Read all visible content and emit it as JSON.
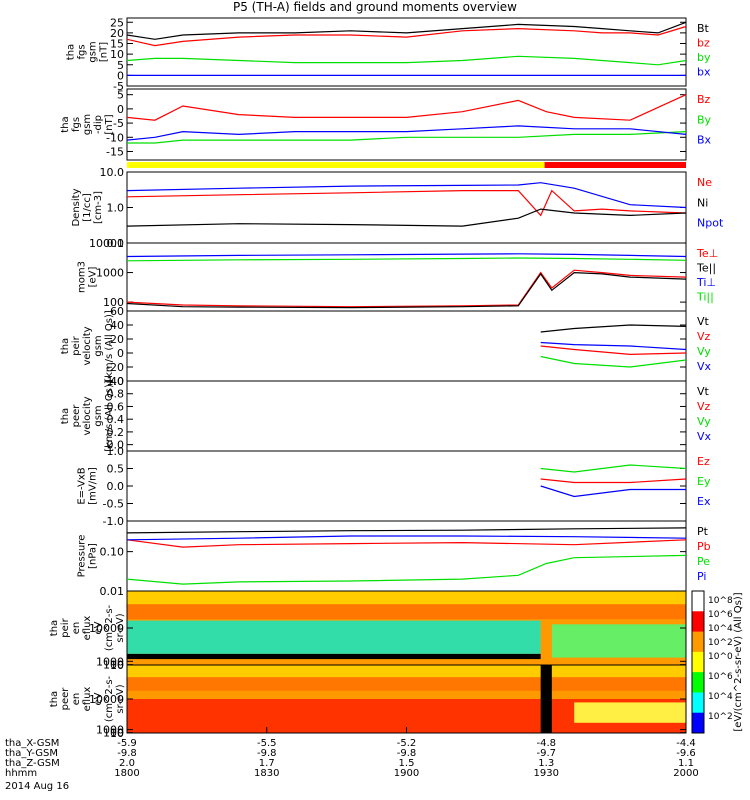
{
  "title": "P5 (TH-A) fields and ground moments overview",
  "colors": {
    "black": "#000000",
    "red": "#ff0000",
    "green": "#00e000",
    "blue": "#0000ff",
    "yellow": "#ffff00"
  },
  "x_axis": {
    "rows": [
      {
        "label": "tha_X-GSM",
        "values": [
          "-5.9",
          "-5.5",
          "-5.2",
          "-4.8",
          "-4.4"
        ]
      },
      {
        "label": "tha_Y-GSM",
        "values": [
          "-9.8",
          "-9.8",
          "-9.8",
          "-9.7",
          "-9.6"
        ]
      },
      {
        "label": "tha_Z-GSM",
        "values": [
          "2.0",
          "1.7",
          "1.5",
          "1.3",
          "1.1"
        ]
      },
      {
        "label": "hhmm",
        "values": [
          "1800",
          "1830",
          "1900",
          "1930",
          "2000"
        ]
      }
    ],
    "date": "2014 Aug 16"
  },
  "chart_data": [
    {
      "type": "line",
      "ylabel": [
        "tha",
        "fgs",
        "gsm",
        "[nT]"
      ],
      "ylim": [
        -5,
        27
      ],
      "yticks": [
        "25",
        "20",
        "15",
        "10",
        "5",
        "0",
        "-5"
      ],
      "ytick_values": [
        25,
        20,
        15,
        10,
        5,
        0,
        -5
      ],
      "series": [
        {
          "name": "Bt",
          "color": "#000000",
          "x": [
            0,
            0.05,
            0.1,
            0.2,
            0.3,
            0.4,
            0.5,
            0.6,
            0.7,
            0.8,
            0.85,
            0.9,
            0.95,
            1
          ],
          "values": [
            19,
            17,
            19,
            20,
            20,
            21,
            20,
            22,
            24,
            23,
            22,
            21,
            20,
            25
          ]
        },
        {
          "name": "bz",
          "color": "#ff0000",
          "x": [
            0,
            0.05,
            0.1,
            0.2,
            0.3,
            0.4,
            0.5,
            0.6,
            0.7,
            0.8,
            0.85,
            0.9,
            0.95,
            1
          ],
          "values": [
            17,
            14,
            16,
            18,
            19,
            19,
            18,
            21,
            22,
            21,
            20,
            20,
            19,
            23
          ]
        },
        {
          "name": "by",
          "color": "#00e000",
          "x": [
            0,
            0.05,
            0.1,
            0.2,
            0.3,
            0.4,
            0.5,
            0.6,
            0.7,
            0.8,
            0.85,
            0.9,
            0.95,
            1
          ],
          "values": [
            7,
            8,
            8,
            7,
            6,
            6,
            6,
            7,
            9,
            8,
            7,
            6,
            5,
            7
          ]
        },
        {
          "name": "bx",
          "color": "#0000ff",
          "x": [
            0,
            0.05,
            0.1,
            0.2,
            0.3,
            0.4,
            0.5,
            0.6,
            0.7,
            0.8,
            0.85,
            0.9,
            0.95,
            1
          ],
          "values": [
            0,
            0,
            0,
            0,
            0,
            0,
            0,
            0,
            0,
            0,
            0,
            0,
            0,
            0
          ]
        }
      ]
    },
    {
      "type": "line",
      "ylabel": [
        "tha",
        "fgs",
        "gsm",
        "-dip",
        "[nT]"
      ],
      "ylim": [
        -18,
        7
      ],
      "yticks": [
        "5",
        "0",
        "-5",
        "-10",
        "-15"
      ],
      "ytick_values": [
        5,
        0,
        -5,
        -10,
        -15
      ],
      "series": [
        {
          "name": "Bz",
          "color": "#ff0000",
          "x": [
            0,
            0.05,
            0.1,
            0.2,
            0.3,
            0.4,
            0.5,
            0.6,
            0.7,
            0.75,
            0.8,
            0.9,
            1
          ],
          "values": [
            -3,
            -4,
            1,
            -2,
            -3,
            -3,
            -3,
            -1,
            3,
            -1,
            -3,
            -4,
            5
          ]
        },
        {
          "name": "By",
          "color": "#00e000",
          "x": [
            0,
            0.05,
            0.1,
            0.2,
            0.3,
            0.4,
            0.5,
            0.6,
            0.7,
            0.8,
            0.9,
            1
          ],
          "values": [
            -12,
            -12,
            -11,
            -11,
            -11,
            -11,
            -10,
            -10,
            -10,
            -9,
            -9,
            -8
          ]
        },
        {
          "name": "Bx",
          "color": "#0000ff",
          "x": [
            0,
            0.05,
            0.1,
            0.2,
            0.3,
            0.4,
            0.5,
            0.6,
            0.7,
            0.8,
            0.9,
            1
          ],
          "values": [
            -11,
            -10,
            -8,
            -9,
            -8,
            -8,
            -8,
            -7,
            -6,
            -7,
            -7,
            -9
          ]
        }
      ]
    },
    {
      "type": "line",
      "log": true,
      "ylabel": [
        "Density",
        "[1/cc]",
        "[cm-3]"
      ],
      "ylim": [
        0.1,
        10
      ],
      "yticks": [
        "10.0",
        "1.0",
        "0.1"
      ],
      "ytick_values": [
        10,
        1,
        0.1
      ],
      "series": [
        {
          "name": "Ne",
          "color": "#ff0000",
          "x": [
            0,
            0.2,
            0.4,
            0.6,
            0.7,
            0.74,
            0.76,
            0.8,
            0.85,
            0.9,
            1
          ],
          "values": [
            2,
            2.3,
            2.6,
            3,
            3,
            0.6,
            3,
            0.8,
            0.9,
            0.8,
            0.7
          ]
        },
        {
          "name": "Ni",
          "color": "#000000",
          "x": [
            0,
            0.2,
            0.4,
            0.6,
            0.7,
            0.74,
            0.8,
            0.9,
            1
          ],
          "values": [
            0.3,
            0.35,
            0.33,
            0.3,
            0.5,
            0.9,
            0.7,
            0.6,
            0.7
          ]
        },
        {
          "name": "Npot",
          "color": "#0000ff",
          "x": [
            0,
            0.2,
            0.4,
            0.6,
            0.7,
            0.74,
            0.8,
            0.9,
            1
          ],
          "values": [
            3,
            3.5,
            4,
            4.2,
            4.3,
            5,
            3.5,
            1.2,
            1
          ]
        }
      ]
    },
    {
      "type": "line",
      "log": true,
      "ylabel": [
        "mom3",
        "[eV]"
      ],
      "ylim": [
        50,
        10000
      ],
      "yticks": [
        "10000",
        "1000",
        "100"
      ],
      "ytick_values": [
        10000,
        1000,
        100
      ],
      "series": [
        {
          "name": "Te⊥",
          "color": "#ff0000",
          "x": [
            0,
            0.1,
            0.2,
            0.4,
            0.6,
            0.7,
            0.74,
            0.76,
            0.8,
            0.85,
            0.9,
            1
          ],
          "values": [
            100,
            80,
            75,
            70,
            75,
            80,
            1000,
            300,
            1200,
            1000,
            800,
            700
          ]
        },
        {
          "name": "Te||",
          "color": "#000000",
          "x": [
            0,
            0.1,
            0.2,
            0.4,
            0.6,
            0.7,
            0.74,
            0.76,
            0.8,
            0.85,
            0.9,
            1
          ],
          "values": [
            90,
            70,
            68,
            65,
            70,
            75,
            900,
            250,
            1000,
            900,
            700,
            600
          ]
        },
        {
          "name": "Ti⊥",
          "color": "#0000ff",
          "x": [
            0,
            0.2,
            0.4,
            0.6,
            0.7,
            0.8,
            0.9,
            1
          ],
          "values": [
            3500,
            3800,
            4000,
            4200,
            4300,
            4100,
            3800,
            3500
          ]
        },
        {
          "name": "Ti||",
          "color": "#00e000",
          "x": [
            0,
            0.2,
            0.4,
            0.6,
            0.7,
            0.8,
            0.9,
            1
          ],
          "values": [
            2500,
            2700,
            2800,
            3000,
            3100,
            3000,
            2800,
            2600
          ]
        }
      ]
    },
    {
      "type": "line",
      "ylabel": [
        "tha",
        "peir",
        "velocity",
        "gsm",
        "[km/s (All Qs)]"
      ],
      "ylim": [
        -40,
        60
      ],
      "yticks": [
        "60",
        "40",
        "20",
        "0",
        "-20",
        "-40"
      ],
      "ytick_values": [
        60,
        40,
        20,
        0,
        -20,
        -40
      ],
      "series": [
        {
          "name": "Vt",
          "color": "#000000",
          "x": [
            0.74,
            0.8,
            0.9,
            1
          ],
          "values": [
            30,
            35,
            40,
            38
          ]
        },
        {
          "name": "Vz",
          "color": "#ff0000",
          "x": [
            0.74,
            0.8,
            0.9,
            1
          ],
          "values": [
            10,
            5,
            -2,
            0
          ]
        },
        {
          "name": "Vy",
          "color": "#00e000",
          "x": [
            0.74,
            0.8,
            0.9,
            1
          ],
          "values": [
            -5,
            -15,
            -20,
            -10
          ]
        },
        {
          "name": "Vx",
          "color": "#0000ff",
          "x": [
            0.74,
            0.8,
            0.9,
            1
          ],
          "values": [
            15,
            12,
            10,
            5
          ]
        }
      ]
    },
    {
      "type": "line",
      "ylabel": [
        "tha",
        "peer",
        "velocity",
        "gsm",
        "[km/s (All Qs)]"
      ],
      "ylim": [
        -0.1,
        1.0
      ],
      "yticks": [
        "1.0",
        "0.8",
        "0.6",
        "0.4",
        "0.2",
        "0.0"
      ],
      "ytick_values": [
        1,
        0.8,
        0.6,
        0.4,
        0.2,
        0
      ],
      "series": [
        {
          "name": "Vt",
          "color": "#000000",
          "x": [],
          "values": []
        },
        {
          "name": "Vz",
          "color": "#ff0000",
          "x": [],
          "values": []
        },
        {
          "name": "Vy",
          "color": "#00e000",
          "x": [],
          "values": []
        },
        {
          "name": "Vx",
          "color": "#0000ff",
          "x": [],
          "values": []
        }
      ]
    },
    {
      "type": "line",
      "ylabel": [
        "E=-VxB",
        "[mV/m]"
      ],
      "ylim": [
        -1.0,
        1.0
      ],
      "yticks": [
        "1.0",
        "0.5",
        "0.0",
        "-0.5",
        "-1.0"
      ],
      "ytick_values": [
        1,
        0.5,
        0,
        -0.5,
        -1
      ],
      "series": [
        {
          "name": "Ez",
          "color": "#ff0000",
          "x": [
            0.74,
            0.8,
            0.9,
            1
          ],
          "values": [
            0.2,
            0.1,
            0.1,
            0.2
          ]
        },
        {
          "name": "Ey",
          "color": "#00e000",
          "x": [
            0.74,
            0.8,
            0.9,
            1
          ],
          "values": [
            0.5,
            0.4,
            0.6,
            0.5
          ]
        },
        {
          "name": "Ex",
          "color": "#0000ff",
          "x": [
            0.74,
            0.8,
            0.9,
            1
          ],
          "values": [
            0,
            -0.3,
            -0.1,
            -0.1
          ]
        }
      ]
    },
    {
      "type": "line",
      "log": true,
      "ylabel": [
        "Pressure",
        "[nPa]"
      ],
      "ylim": [
        0.01,
        0.6
      ],
      "yticks": [
        "0.10",
        "0.01"
      ],
      "ytick_values": [
        0.1,
        0.01
      ],
      "series": [
        {
          "name": "Pt",
          "color": "#000000",
          "x": [
            0,
            0.2,
            0.4,
            0.6,
            0.8,
            1
          ],
          "values": [
            0.3,
            0.32,
            0.34,
            0.35,
            0.38,
            0.4
          ]
        },
        {
          "name": "Pb",
          "color": "#ff0000",
          "x": [
            0,
            0.1,
            0.2,
            0.4,
            0.6,
            0.8,
            1
          ],
          "values": [
            0.2,
            0.13,
            0.15,
            0.16,
            0.17,
            0.15,
            0.2
          ]
        },
        {
          "name": "Pe",
          "color": "#00e000",
          "x": [
            0,
            0.1,
            0.2,
            0.4,
            0.6,
            0.7,
            0.75,
            0.8,
            1
          ],
          "values": [
            0.02,
            0.015,
            0.017,
            0.018,
            0.02,
            0.025,
            0.05,
            0.07,
            0.08
          ]
        },
        {
          "name": "Pi",
          "color": "#0000ff",
          "x": [
            0,
            0.2,
            0.4,
            0.6,
            0.8,
            1
          ],
          "values": [
            0.2,
            0.22,
            0.25,
            0.25,
            0.24,
            0.22
          ]
        }
      ]
    },
    {
      "type": "heatmap",
      "ylabel": [
        "tha",
        "peir",
        "en",
        "eflux",
        "eV",
        "(cm^2-s-",
        "sr-eV)"
      ],
      "ylim": [
        5,
        20000
      ],
      "yticks": [
        "10000",
        "1000",
        "100",
        "10"
      ],
      "ytick_values": [
        10000,
        1000,
        100,
        10
      ]
    },
    {
      "type": "heatmap",
      "ylabel": [
        "tha",
        "peer",
        "en",
        "eflux",
        "eV",
        "(cm^2-s-",
        "sr-eV)"
      ],
      "ylim": [
        5,
        20000
      ],
      "yticks": [
        "10000",
        "1000",
        "100",
        "10"
      ],
      "ytick_values": [
        10000,
        1000,
        100,
        10
      ]
    }
  ],
  "colorbar": {
    "label": "[eV/(cm^2-s-sr-eV) (All Qs)]",
    "ticks_upper": [
      "10^8",
      "10^6",
      "10^4",
      "10^2",
      "10^0"
    ],
    "ticks_lower": [
      "10^6",
      "10^4",
      "10^2"
    ]
  }
}
